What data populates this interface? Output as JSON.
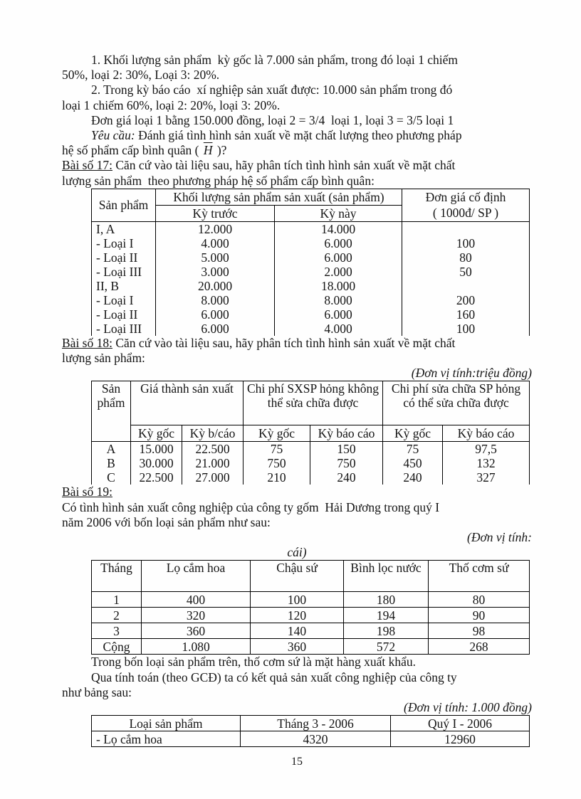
{
  "document": {
    "page_number": "15",
    "prev_problem": {
      "item1_l1": "1. Khối lượng sản phẩm  kỳ gốc là 7.000 sản phẩm, trong đó loại 1 chiếm",
      "item1_l2": "50%, loại 2: 30%, Loại 3: 20%.",
      "item2_l1": "2. Trong kỳ báo cáo  xí nghiệp sản xuất được: 10.000 sản phẩm trong đó",
      "item2_l2": "loại 1 chiếm 60%, loại 2: 20%, loại 3: 20%.",
      "price_line": "Đơn giá loại 1 bằng 150.000 đồng, loại 2 = 3/4  loại 1, loại 3 = 3/5 loại 1",
      "requirement_label": "Yêu cầu:",
      "requirement_l1": " Đánh giá tình hình sản xuất về mặt chất lượng theo phương pháp",
      "requirement_l2_pre": "hệ số phẩm cấp bình quân ( ",
      "requirement_symbol": "H",
      "requirement_l2_post": " )?"
    },
    "bai17": {
      "heading": "Bài số 17:",
      "intro_l1": " Căn cứ vào tài liệu sau, hãy phân tích tình hình sản xuất về mặt chất",
      "intro_l2": "lượng sản phẩm  theo phương pháp hệ số phẩm cấp bình quân:",
      "table": {
        "col1_header": "Sản phẩm",
        "group_header": "Khối lượng sản phẩm sản xuất (sản phẩm)",
        "price_header_l1": "Đơn giá cố định",
        "price_header_l2": "( 1000đ/ SP )",
        "sub_headers": [
          "Kỳ trước",
          "Kỳ này"
        ],
        "rows": [
          [
            "I, A",
            "12.000",
            "14.000",
            ""
          ],
          [
            "- Loại I",
            "4.000",
            "6.000",
            "100"
          ],
          [
            "- Loại II",
            "5.000",
            "6.000",
            "80"
          ],
          [
            "- Loại III",
            "3.000",
            "2.000",
            "50"
          ],
          [
            "II, B",
            "20.000",
            "18.000",
            ""
          ],
          [
            "- Loại I",
            "8.000",
            "8.000",
            "200"
          ],
          [
            "- Loại II",
            "6.000",
            "6.000",
            "160"
          ],
          [
            "- Loại III",
            "6.000",
            "4.000",
            "100"
          ]
        ]
      }
    },
    "bai18": {
      "heading": "Bài số 18:",
      "intro_l1": " Căn cứ vào tài liệu sau, hãy phân tích tình hình sản xuất về mặt chất",
      "intro_l2": "lượng sản phẩm:",
      "unit_note": "(Đơn vị tính:triệu đồng)",
      "table": {
        "col1_header": "Sản phẩm",
        "group_headers": [
          "Giá thành sản xuất",
          "Chi phí SXSP hỏng không thể sửa chữa được",
          "Chi phí sửa chữa SP hỏng có thể sửa chữa được"
        ],
        "sub_headers": [
          "Kỳ gốc",
          "Kỳ b/cáo",
          "Kỳ gốc",
          "Kỳ báo cáo",
          "Kỳ gốc",
          "Kỳ báo cáo"
        ],
        "rows": [
          [
            "A",
            "15.000",
            "22.500",
            "75",
            "150",
            "75",
            "97,5"
          ],
          [
            "B",
            "30.000",
            "21.000",
            "750",
            "750",
            "450",
            "132"
          ],
          [
            "C",
            "22.500",
            "27.000",
            "210",
            "240",
            "240",
            "327"
          ]
        ]
      }
    },
    "bai19": {
      "heading": "Bài số 19:",
      "intro_l1": "Có tình hình sản xuất công nghiệp của công ty gốm  Hải Dương trong quý I",
      "intro_l2": "năm 2006 với bốn loại sản phẩm như sau:",
      "unit_note_l1": "(Đơn vị tính:",
      "unit_note_l2": "cái)",
      "table": {
        "headers": [
          "Tháng",
          "Lọ cắm hoa",
          "Chậu sứ",
          "Bình lọc nước",
          "Thố cơm sứ"
        ],
        "rows": [
          [
            "1",
            "400",
            "100",
            "180",
            "80"
          ],
          [
            "2",
            "320",
            "120",
            "194",
            "90"
          ],
          [
            "3",
            "360",
            "140",
            "198",
            "98"
          ],
          [
            "Cộng",
            "1.080",
            "360",
            "572",
            "268"
          ]
        ]
      },
      "note_line": "Trong bốn loại sản phẩm trên, thố cơm sứ là mặt hàng xuất khẩu.",
      "calc_l1": "Qua tính toán (theo GCĐ) ta có kết quả sản xuất công nghiệp của công ty",
      "calc_l2": "như bảng sau:",
      "unit_note2": "(Đơn vị tính: 1.000 đồng)",
      "result_table": {
        "headers": [
          "Loại sản phẩm",
          "Tháng 3 - 2006",
          "Quý I - 2006"
        ],
        "rows": [
          [
            "- Lọ cắm hoa",
            "4320",
            "12960"
          ]
        ]
      }
    }
  }
}
